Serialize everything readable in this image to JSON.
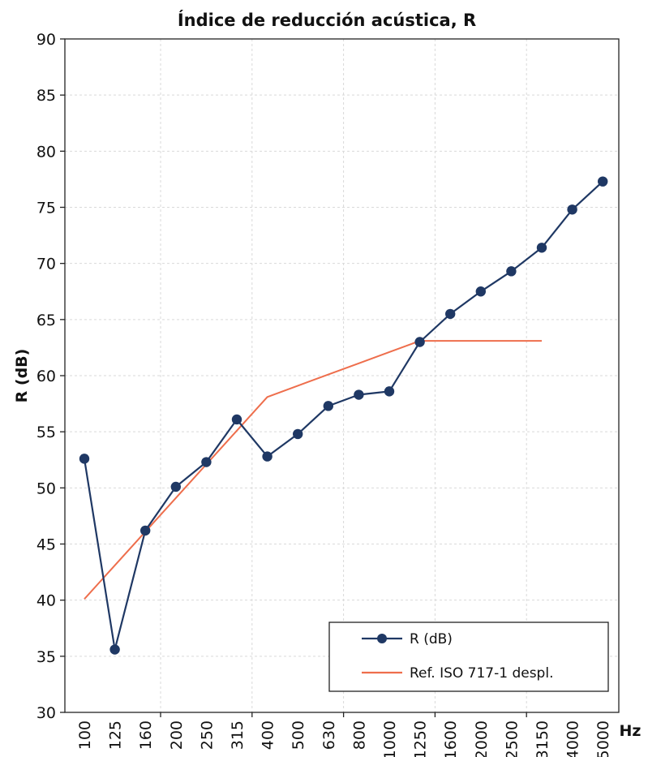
{
  "chart_data": {
    "type": "line",
    "title": "Índice de reducción acústica, R",
    "ylabel": "R (dB)",
    "xunit": "Hz",
    "ylim": [
      30,
      90
    ],
    "yticks": [
      30,
      35,
      40,
      45,
      50,
      55,
      60,
      65,
      70,
      75,
      80,
      85,
      90
    ],
    "categories": [
      "100",
      "125",
      "160",
      "200",
      "250",
      "315",
      "400",
      "500",
      "630",
      "800",
      "1000",
      "1250",
      "1600",
      "2000",
      "2500",
      "3150",
      "4000",
      "5000"
    ],
    "grid": true,
    "legend_position": "bottom-right",
    "series": [
      {
        "name": "R (dB)",
        "color": "#1f3864",
        "marker": "circle",
        "values": [
          52.6,
          35.6,
          46.2,
          50.1,
          52.3,
          56.1,
          52.8,
          54.8,
          57.3,
          58.3,
          58.6,
          63.0,
          65.5,
          67.5,
          69.3,
          71.4,
          74.8,
          77.3
        ]
      },
      {
        "name": "Ref. ISO 717-1 despl.",
        "color": "#ee6e4c",
        "marker": "none",
        "values": [
          40.1,
          43.1,
          46.1,
          49.1,
          52.1,
          55.1,
          58.1,
          59.1,
          60.1,
          61.1,
          62.1,
          63.1,
          63.1,
          63.1,
          63.1,
          63.1,
          null,
          null
        ]
      }
    ]
  }
}
